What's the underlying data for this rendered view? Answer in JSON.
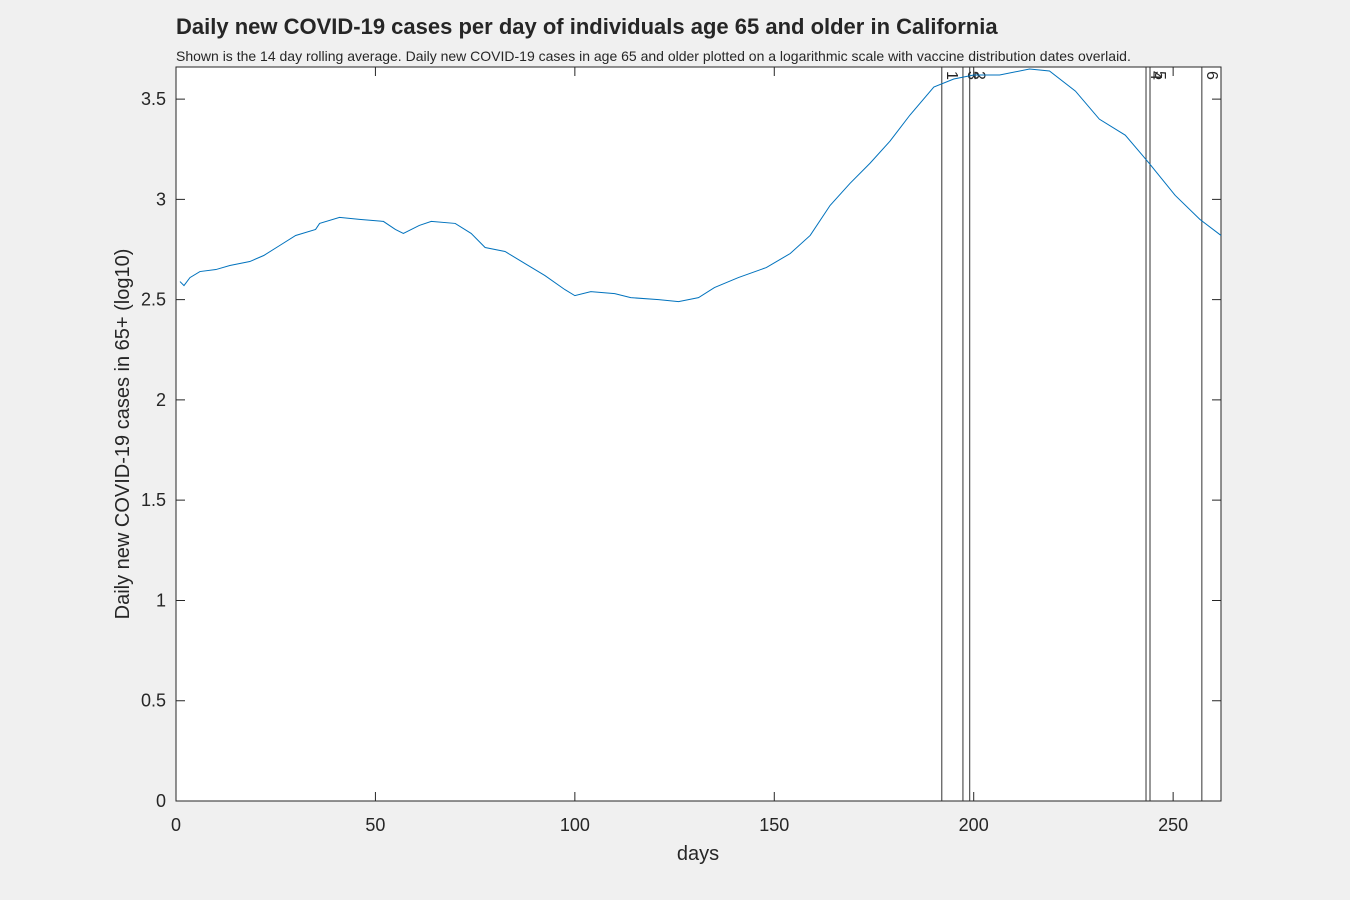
{
  "chart_data": {
    "type": "line",
    "title": "Daily new COVID-19 cases per day of individuals age 65 and older in California",
    "subtitle": "Shown is the 14 day rolling average. Daily new COVID-19 cases in age 65 and older plotted on a logarithmic scale with vaccine distribution dates overlaid.",
    "x_label": "days",
    "y_label": "Daily new COVID-19 cases in 65+ (log10)",
    "xlim": [
      0,
      262
    ],
    "ylim": [
      0,
      3.66
    ],
    "xticks": [
      0,
      50,
      100,
      150,
      200,
      250
    ],
    "yticks": [
      0,
      0.5,
      1,
      1.5,
      2,
      2.5,
      3,
      3.5
    ],
    "series": [
      {
        "color": "#0072bd",
        "x": [
          1,
          2,
          3.5,
          6,
          10,
          13.5,
          18.5,
          22,
          26,
          30,
          35,
          36,
          41,
          46,
          52,
          55,
          57,
          61,
          64,
          70,
          74,
          77.5,
          82.5,
          87.5,
          92.5,
          97.5,
          100,
          104,
          110,
          114,
          121,
          126,
          131,
          135,
          141,
          148,
          154,
          159,
          164,
          169,
          174,
          179,
          184,
          190,
          195,
          200,
          206.5,
          214,
          219,
          225.5,
          231.5,
          238,
          244,
          250.5,
          256.7,
          262
        ],
        "values": [
          2.59,
          2.57,
          2.61,
          2.64,
          2.65,
          2.67,
          2.69,
          2.72,
          2.77,
          2.82,
          2.85,
          2.88,
          2.91,
          2.9,
          2.89,
          2.85,
          2.83,
          2.87,
          2.89,
          2.88,
          2.83,
          2.76,
          2.74,
          2.68,
          2.62,
          2.55,
          2.52,
          2.54,
          2.53,
          2.51,
          2.5,
          2.49,
          2.51,
          2.56,
          2.61,
          2.66,
          2.73,
          2.82,
          2.97,
          3.08,
          3.18,
          3.29,
          3.42,
          3.56,
          3.6,
          3.62,
          3.62,
          3.65,
          3.64,
          3.54,
          3.4,
          3.32,
          3.18,
          3.02,
          2.9,
          2.82
        ]
      }
    ],
    "vaccine_lines": [
      {
        "x": 192,
        "label": "1"
      },
      {
        "x": 197.3,
        "label": "3"
      },
      {
        "x": 199,
        "label": "2"
      },
      {
        "x": 243.2,
        "label": "4"
      },
      {
        "x": 244.2,
        "label": "5"
      },
      {
        "x": 257.2,
        "label": "6"
      }
    ]
  }
}
